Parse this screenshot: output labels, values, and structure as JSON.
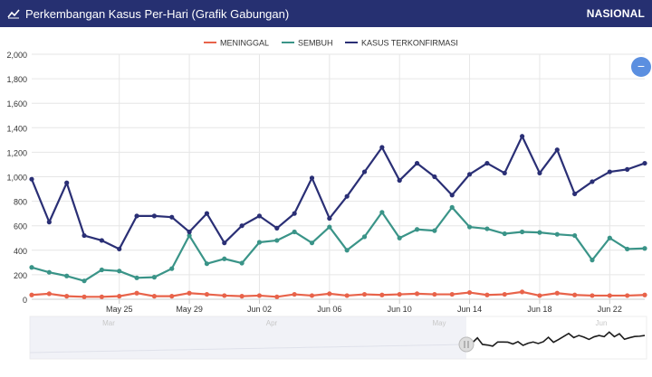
{
  "header": {
    "title": "Perkembangan Kasus Per-Hari (Grafik Gabungan)",
    "scope": "NASIONAL"
  },
  "zoom_button": {
    "label": "−"
  },
  "colors": {
    "meninggal": "#e8634a",
    "sembuh": "#3a9488",
    "kasus": "#2a2f75",
    "header": "#263071"
  },
  "chart_data": {
    "type": "line",
    "x_start": "2020-05-20",
    "x": [
      "May 20",
      "May 21",
      "May 22",
      "May 23",
      "May 24",
      "May 25",
      "May 26",
      "May 27",
      "May 28",
      "May 29",
      "May 30",
      "May 31",
      "Jun 01",
      "Jun 02",
      "Jun 03",
      "Jun 04",
      "Jun 05",
      "Jun 06",
      "Jun 07",
      "Jun 08",
      "Jun 09",
      "Jun 10",
      "Jun 11",
      "Jun 12",
      "Jun 13",
      "Jun 14",
      "Jun 15",
      "Jun 16",
      "Jun 17",
      "Jun 18",
      "Jun 19",
      "Jun 20",
      "Jun 21",
      "Jun 22",
      "Jun 23",
      "Jun 24"
    ],
    "xticks": [
      "May 25",
      "May 29",
      "Jun 02",
      "Jun 06",
      "Jun 10",
      "Jun 14",
      "Jun 18",
      "Jun 22"
    ],
    "ylim": [
      0,
      2000
    ],
    "yticks": [
      "0",
      "200",
      "400",
      "600",
      "800",
      "1,000",
      "1,200",
      "1,400",
      "1,600",
      "1,800",
      "2,000"
    ],
    "legend": "top",
    "grid": true,
    "series": [
      {
        "name": "MENINGGAL",
        "color": "#e8634a",
        "values": [
          35,
          45,
          25,
          20,
          20,
          25,
          50,
          25,
          25,
          50,
          40,
          30,
          25,
          30,
          20,
          40,
          30,
          45,
          30,
          40,
          35,
          40,
          45,
          40,
          40,
          55,
          35,
          40,
          60,
          30,
          50,
          35,
          30,
          30,
          30,
          35
        ]
      },
      {
        "name": "SEMBUH",
        "color": "#3a9488",
        "values": [
          260,
          220,
          190,
          150,
          240,
          230,
          175,
          180,
          250,
          520,
          290,
          330,
          295,
          465,
          480,
          550,
          460,
          590,
          400,
          510,
          710,
          500,
          570,
          560,
          750,
          590,
          575,
          535,
          550,
          545,
          530,
          520,
          320,
          500,
          410,
          415
        ]
      },
      {
        "name": "KASUS TERKONFIRMASI",
        "color": "#2a2f75",
        "values": [
          980,
          630,
          950,
          520,
          480,
          410,
          680,
          680,
          670,
          550,
          700,
          460,
          600,
          680,
          580,
          700,
          990,
          660,
          840,
          1040,
          1240,
          970,
          1110,
          1000,
          850,
          1020,
          1110,
          1030,
          1330,
          1030,
          1220,
          860,
          960,
          1040,
          1060,
          1110
        ]
      }
    ],
    "navigator": {
      "labels": [
        "Mar",
        "Apr",
        "May",
        "Jun"
      ]
    }
  }
}
